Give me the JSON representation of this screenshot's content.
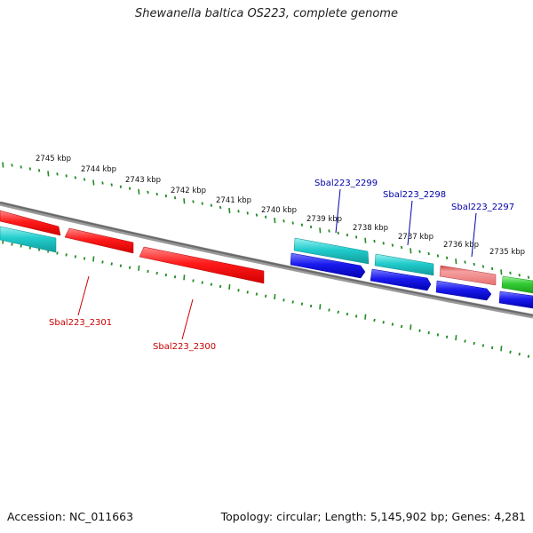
{
  "title": "Shewanella baltica OS223, complete genome",
  "footer": {
    "accession": "Accession: NC_011663",
    "summary": "Topology: circular; Length: 5,145,902 bp; Genes: 4,281"
  },
  "colors": {
    "backbone": "#7a7a7a",
    "ticks": "#228b22",
    "red_gene": "#ff1a1a",
    "cyan_gene": "#22cccc",
    "blue_gene": "#1a1aee",
    "pink_gene": "#ee8080",
    "green_gene": "#33cc33",
    "label_red": "#cc0000",
    "label_blue": "#0000aa"
  },
  "kbp_labels": [
    "2745 kbp",
    "2744 kbp",
    "2743 kbp",
    "2742 kbp",
    "2741 kbp",
    "2740 kbp",
    "2739 kbp",
    "2738 kbp",
    "2737 kbp",
    "2736 kbp",
    "2735 kbp"
  ],
  "gene_labels": {
    "sbal2301": "Sbal223_2301",
    "sbal2300": "Sbal223_2300",
    "sbal2299": "Sbal223_2299",
    "sbal2298": "Sbal223_2298",
    "sbal2297": "Sbal223_2297"
  }
}
